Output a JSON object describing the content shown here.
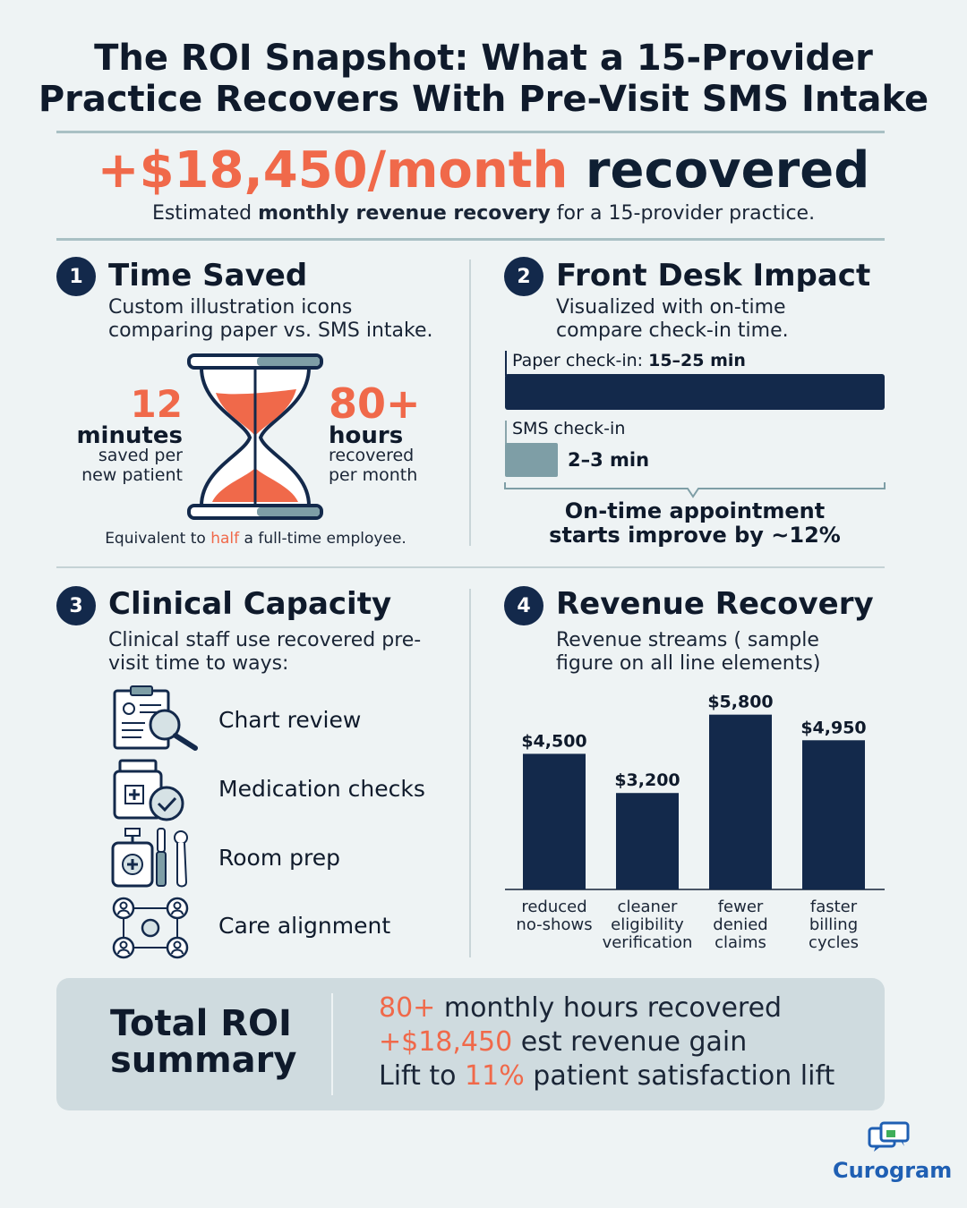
{
  "title_line1": "The ROI Snapshot: What a 15-Provider",
  "title_line2": "Practice Recovers With Pre-Visit SMS Intake",
  "headline": {
    "amount": "+$18,450/month",
    "suffix": "recovered",
    "sub_pre": "Estimated ",
    "sub_bold": "monthly revenue recovery",
    "sub_post": " for a 15-provider practice."
  },
  "section1": {
    "number": "1",
    "title": "Time Saved",
    "desc": "Custom illustration icons comparing paper vs. SMS intake.",
    "left_value": "12",
    "left_unit": "minutes",
    "left_sub1": "saved per",
    "left_sub2": "new patient",
    "right_value": "80+",
    "right_unit": "hours",
    "right_sub1": "recovered",
    "right_sub2": "per month",
    "equiv_pre": "Equivalent to ",
    "equiv_hl": "half",
    "equiv_post": " a full-time employee."
  },
  "section2": {
    "number": "2",
    "title": "Front Desk Impact",
    "desc": "Visualized with on-time compare check-in time.",
    "paper_label": "Paper check-in: ",
    "paper_value": "15–25 min",
    "sms_label": "SMS check-in",
    "sms_value": "2–3 min",
    "paper_bar_fraction": 1.0,
    "sms_bar_fraction": 0.14,
    "ontime_line1": "On-time appointment",
    "ontime_line2": "starts improve by ~12%"
  },
  "section3": {
    "number": "3",
    "title": "Clinical Capacity",
    "desc": "Clinical staff use recovered pre-visit time to ways:",
    "items": [
      {
        "label": "Chart review",
        "icon": "clipboard-magnifier-icon"
      },
      {
        "label": "Medication checks",
        "icon": "pill-bottle-check-icon"
      },
      {
        "label": "Room prep",
        "icon": "sanitizer-tools-icon"
      },
      {
        "label": "Care alignment",
        "icon": "team-network-icon"
      }
    ]
  },
  "section4": {
    "number": "4",
    "title": "Revenue Recovery",
    "desc": "Revenue streams ( sample figure on all line elements)"
  },
  "chart_data": {
    "type": "bar",
    "categories": [
      [
        "reduced",
        "no-shows"
      ],
      [
        "cleaner",
        "eligibility",
        "verification"
      ],
      [
        "fewer",
        "denied",
        "claims"
      ],
      [
        "faster",
        "billing",
        "cycles"
      ]
    ],
    "values": [
      4500,
      3200,
      5800,
      4950
    ],
    "value_labels": [
      "$4,500",
      "$3,200",
      "$5,800",
      "$4,950"
    ],
    "ylim": [
      0,
      6000
    ],
    "color": "#13294b"
  },
  "summary": {
    "title_line1": "Total ROI",
    "title_line2": "summary",
    "line1_hl": "80+",
    "line1_rest": " monthly hours recovered",
    "line2_hl": "+$18,450",
    "line2_rest": " est revenue gain",
    "line3_pre": "Lift to ",
    "line3_hl": "11%",
    "line3_rest": " patient satisfaction lift"
  },
  "brand": {
    "name": "Curogram",
    "icon": "chat-bubbles-icon",
    "color": "#1f5fb3"
  },
  "colors": {
    "navy": "#13294b",
    "orange": "#f0694a",
    "teal": "#7e9ea6",
    "background": "#eef3f4"
  }
}
